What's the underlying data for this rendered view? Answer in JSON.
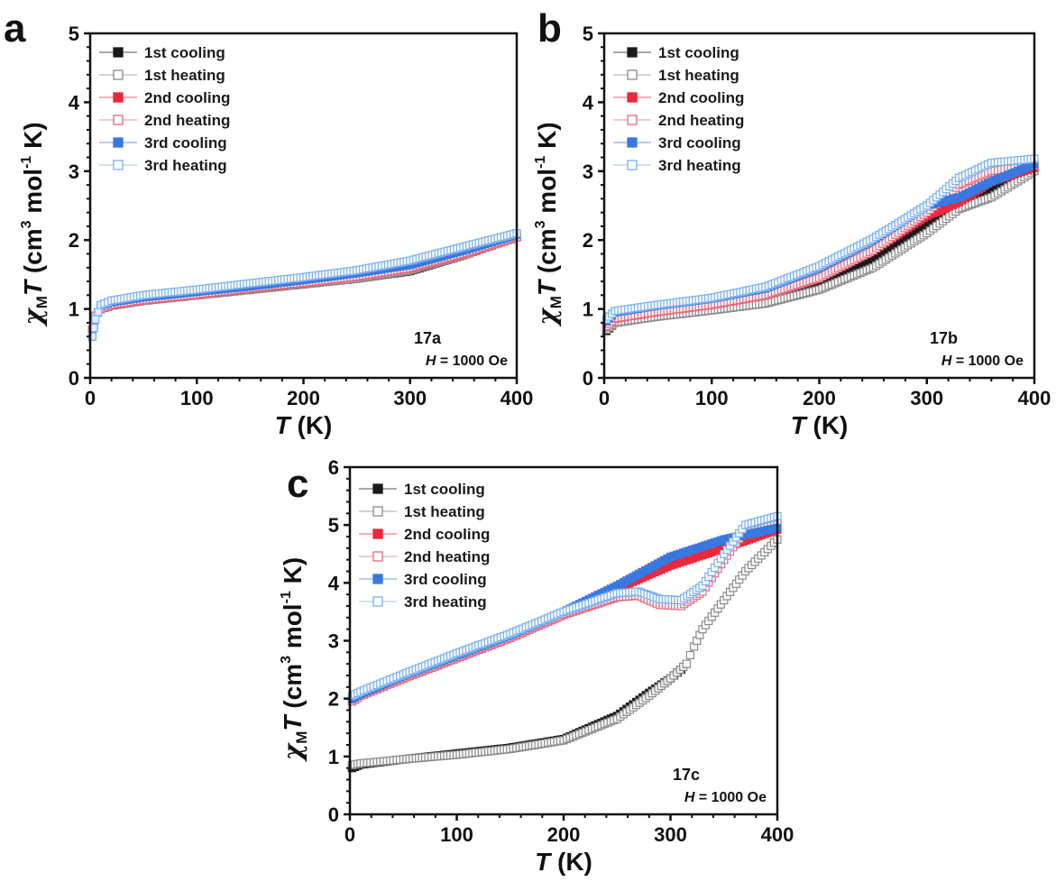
{
  "chart_data": [
    {
      "type": "scatter",
      "panel": "a",
      "title": "",
      "xlabel_italic": "T",
      "xlabel_rest": " (K)",
      "ylabel_chi": "χ",
      "ylabel_sub": "M",
      "ylabel_T": "T",
      "ylabel_rest1": " (cm",
      "ylabel_sup1": "3",
      "ylabel_rest2": " mol",
      "ylabel_sup2": "-1",
      "ylabel_rest3": " K)",
      "xlim": [
        0,
        400
      ],
      "ylim": [
        0,
        5
      ],
      "xticks": [
        0,
        100,
        200,
        300,
        400
      ],
      "yticks": [
        0,
        1,
        2,
        3,
        4,
        5
      ],
      "legend_position": "top-left",
      "annotation_sample": "17a",
      "annotation_field_italic": "H",
      "annotation_field_rest": " = 1000 Oe",
      "series": [
        {
          "name": "1st cooling",
          "color": "#1a1a1a",
          "filled": true,
          "x": [
            2,
            5,
            10,
            20,
            50,
            100,
            150,
            200,
            250,
            300,
            350,
            400
          ],
          "y": [
            0.7,
            0.9,
            1.0,
            1.05,
            1.12,
            1.2,
            1.28,
            1.36,
            1.44,
            1.55,
            1.78,
            2.05
          ]
        },
        {
          "name": "1st heating",
          "color": "#8a8a8a",
          "filled": false,
          "x": [
            2,
            5,
            10,
            20,
            50,
            100,
            150,
            200,
            250,
            300,
            350,
            400
          ],
          "y": [
            0.7,
            0.9,
            1.0,
            1.05,
            1.12,
            1.2,
            1.28,
            1.36,
            1.44,
            1.56,
            1.78,
            2.05
          ]
        },
        {
          "name": "2nd cooling",
          "color": "#e8283c",
          "filled": true,
          "x": [
            2,
            5,
            10,
            20,
            50,
            100,
            150,
            200,
            250,
            300,
            350,
            400
          ],
          "y": [
            0.7,
            0.9,
            1.0,
            1.06,
            1.13,
            1.21,
            1.3,
            1.38,
            1.47,
            1.59,
            1.8,
            2.04
          ]
        },
        {
          "name": "2nd heating",
          "color": "#e86a80",
          "filled": false,
          "x": [
            2,
            5,
            10,
            20,
            50,
            100,
            150,
            200,
            250,
            300,
            350,
            400
          ],
          "y": [
            0.7,
            0.9,
            1.0,
            1.06,
            1.13,
            1.21,
            1.3,
            1.38,
            1.47,
            1.59,
            1.8,
            2.04
          ]
        },
        {
          "name": "3rd cooling",
          "color": "#3a78e0",
          "filled": true,
          "x": [
            2,
            5,
            10,
            20,
            50,
            100,
            150,
            200,
            250,
            300,
            350,
            400
          ],
          "y": [
            0.6,
            0.85,
            1.05,
            1.1,
            1.17,
            1.25,
            1.33,
            1.42,
            1.52,
            1.64,
            1.85,
            2.08
          ]
        },
        {
          "name": "3rd heating",
          "color": "#7ab0ee",
          "filled": false,
          "x": [
            2,
            5,
            10,
            20,
            50,
            100,
            150,
            200,
            250,
            300,
            350,
            400
          ],
          "y": [
            0.6,
            0.85,
            1.06,
            1.12,
            1.2,
            1.28,
            1.37,
            1.46,
            1.56,
            1.7,
            1.9,
            2.1
          ]
        }
      ]
    },
    {
      "type": "scatter",
      "panel": "b",
      "title": "",
      "xlabel_italic": "T",
      "xlabel_rest": " (K)",
      "ylabel_chi": "χ",
      "ylabel_sub": "M",
      "ylabel_T": "T",
      "ylabel_rest1": " (cm",
      "ylabel_sup1": "3",
      "ylabel_rest2": " mol",
      "ylabel_sup2": "-1",
      "ylabel_rest3": " K)",
      "xlim": [
        0,
        400
      ],
      "ylim": [
        0,
        5
      ],
      "xticks": [
        0,
        100,
        200,
        300,
        400
      ],
      "yticks": [
        0,
        1,
        2,
        3,
        4,
        5
      ],
      "legend_position": "top-left",
      "annotation_sample": "17b",
      "annotation_field_italic": "H",
      "annotation_field_rest": " = 1000 Oe",
      "series": [
        {
          "name": "1st cooling",
          "color": "#1a1a1a",
          "filled": true,
          "x": [
            2,
            10,
            50,
            100,
            150,
            200,
            250,
            300,
            330,
            360,
            400
          ],
          "y": [
            0.68,
            0.8,
            0.9,
            1.0,
            1.12,
            1.35,
            1.7,
            2.25,
            2.55,
            2.72,
            3.02
          ]
        },
        {
          "name": "1st heating",
          "color": "#8a8a8a",
          "filled": false,
          "x": [
            2,
            10,
            50,
            100,
            150,
            200,
            250,
            300,
            330,
            360,
            400
          ],
          "y": [
            0.7,
            0.8,
            0.89,
            0.98,
            1.08,
            1.28,
            1.6,
            2.1,
            2.45,
            2.62,
            3.0
          ]
        },
        {
          "name": "2nd cooling",
          "color": "#e8283c",
          "filled": true,
          "x": [
            2,
            10,
            50,
            100,
            150,
            200,
            250,
            300,
            330,
            360,
            400
          ],
          "y": [
            0.75,
            0.86,
            0.96,
            1.06,
            1.2,
            1.45,
            1.85,
            2.35,
            2.55,
            2.85,
            3.05
          ]
        },
        {
          "name": "2nd heating",
          "color": "#e86a80",
          "filled": false,
          "x": [
            2,
            10,
            50,
            100,
            150,
            200,
            250,
            300,
            330,
            360,
            400
          ],
          "y": [
            0.75,
            0.86,
            0.96,
            1.06,
            1.2,
            1.45,
            1.85,
            2.4,
            2.8,
            3.0,
            3.08
          ]
        },
        {
          "name": "3rd cooling",
          "color": "#3a78e0",
          "filled": true,
          "x": [
            2,
            10,
            50,
            100,
            150,
            200,
            250,
            300,
            330,
            360,
            400
          ],
          "y": [
            0.82,
            0.95,
            1.05,
            1.15,
            1.3,
            1.6,
            2.0,
            2.5,
            2.62,
            2.85,
            3.1
          ]
        },
        {
          "name": "3rd heating",
          "color": "#7ab0ee",
          "filled": false,
          "x": [
            2,
            10,
            50,
            100,
            150,
            200,
            250,
            300,
            330,
            360,
            400
          ],
          "y": [
            0.85,
            0.97,
            1.06,
            1.16,
            1.32,
            1.62,
            2.02,
            2.5,
            2.9,
            3.12,
            3.18
          ]
        }
      ]
    },
    {
      "type": "scatter",
      "panel": "c",
      "title": "",
      "xlabel_italic": "T",
      "xlabel_rest": " (K)",
      "ylabel_chi": "χ",
      "ylabel_sub": "M",
      "ylabel_T": "T",
      "ylabel_rest1": " (cm",
      "ylabel_sup1": "3",
      "ylabel_rest2": " mol",
      "ylabel_sup2": "-1",
      "ylabel_rest3": " K)",
      "xlim": [
        0,
        400
      ],
      "ylim": [
        0,
        6
      ],
      "xticks": [
        0,
        100,
        200,
        300,
        400
      ],
      "yticks": [
        0,
        1,
        2,
        3,
        4,
        5,
        6
      ],
      "legend_position": "top-left",
      "annotation_sample": "17c",
      "annotation_field_italic": "H",
      "annotation_field_rest": " = 1000 Oe",
      "series": [
        {
          "name": "1st cooling",
          "color": "#1a1a1a",
          "filled": true,
          "x": [
            2,
            10,
            50,
            100,
            150,
            200,
            250,
            280,
            300,
            310
          ],
          "y": [
            0.8,
            0.86,
            0.95,
            1.05,
            1.15,
            1.3,
            1.7,
            2.1,
            2.35,
            2.5
          ]
        },
        {
          "name": "1st heating",
          "color": "#8a8a8a",
          "filled": false,
          "x": [
            2,
            10,
            50,
            100,
            150,
            200,
            250,
            280,
            300,
            315,
            322,
            330,
            350,
            370,
            400
          ],
          "y": [
            0.85,
            0.88,
            0.95,
            1.03,
            1.13,
            1.28,
            1.65,
            2.05,
            2.35,
            2.6,
            2.9,
            3.2,
            3.7,
            4.2,
            4.75
          ]
        },
        {
          "name": "2nd cooling",
          "color": "#e8283c",
          "filled": true,
          "x": [
            2,
            10,
            50,
            100,
            150,
            200,
            250,
            300,
            350,
            400
          ],
          "y": [
            1.95,
            2.05,
            2.35,
            2.7,
            3.05,
            3.45,
            3.9,
            4.3,
            4.6,
            4.92
          ]
        },
        {
          "name": "2nd heating",
          "color": "#e86a80",
          "filled": false,
          "x": [
            2,
            10,
            50,
            100,
            150,
            200,
            250,
            270,
            290,
            310,
            330,
            350,
            370,
            400
          ],
          "y": [
            1.95,
            2.05,
            2.35,
            2.7,
            3.05,
            3.45,
            3.75,
            3.78,
            3.62,
            3.6,
            3.85,
            4.4,
            4.9,
            5.05
          ]
        },
        {
          "name": "3rd cooling",
          "color": "#3a78e0",
          "filled": true,
          "x": [
            2,
            10,
            50,
            100,
            150,
            200,
            250,
            300,
            350,
            400
          ],
          "y": [
            2.0,
            2.08,
            2.4,
            2.75,
            3.1,
            3.5,
            3.95,
            4.45,
            4.75,
            4.95
          ]
        },
        {
          "name": "3rd heating",
          "color": "#7ab0ee",
          "filled": false,
          "x": [
            2,
            10,
            50,
            100,
            150,
            200,
            250,
            270,
            290,
            310,
            330,
            350,
            370,
            400
          ],
          "y": [
            2.05,
            2.12,
            2.42,
            2.78,
            3.12,
            3.5,
            3.82,
            3.85,
            3.72,
            3.7,
            3.95,
            4.5,
            5.0,
            5.15
          ]
        }
      ]
    }
  ]
}
